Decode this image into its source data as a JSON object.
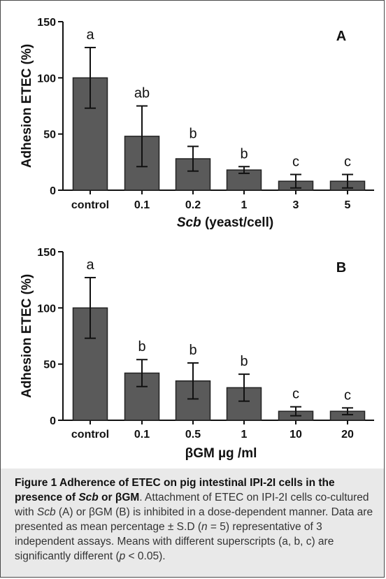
{
  "chart_data": [
    {
      "type": "bar",
      "panel_label": "A",
      "categories": [
        "control",
        "0.1",
        "0.2",
        "1",
        "3",
        "5"
      ],
      "values": [
        100,
        48,
        28,
        18,
        8,
        8
      ],
      "errors": [
        27,
        27,
        11,
        3,
        6,
        6
      ],
      "significance": [
        "a",
        "ab",
        "b",
        "b",
        "c",
        "c"
      ],
      "xlabel_italic": "Scb",
      "xlabel_rest": " (yeast/cell)",
      "ylabel": "Adhesion ETEC (%)",
      "ylim": [
        0,
        150
      ],
      "yticks": [
        0,
        50,
        100,
        150
      ],
      "bar_color": "#5a5a5a",
      "grid": false
    },
    {
      "type": "bar",
      "panel_label": "B",
      "categories": [
        "control",
        "0.1",
        "0.5",
        "1",
        "10",
        "20"
      ],
      "values": [
        100,
        42,
        35,
        29,
        8,
        8
      ],
      "errors": [
        27,
        12,
        16,
        12,
        4,
        3
      ],
      "significance": [
        "a",
        "b",
        "b",
        "b",
        "c",
        "c"
      ],
      "xlabel_italic": "",
      "xlabel_rest": "βGM µg /ml",
      "ylabel": "Adhesion ETEC (%)",
      "ylim": [
        0,
        150
      ],
      "yticks": [
        0,
        50,
        100,
        150
      ],
      "bar_color": "#5a5a5a",
      "grid": false
    }
  ],
  "caption": {
    "title_part1": "Figure 1 Adherence of ETEC on pig intestinal IPI-2I cells in the presence of ",
    "title_scb": "Scb",
    "title_part2": " or βGM",
    "body_1": ". Attachment of ETEC on IPI-2I cells co-cultured with ",
    "body_scb": "Scb",
    "body_2": " (A) or βGM (B) is inhibited in a dose-dependent manner. Data are presented as mean percentage ± S.D (",
    "body_n": "n",
    "body_3": " = 5) representative of 3 independent assays. Means with different superscripts (a, b, c) are significantly different (",
    "body_p": "p",
    "body_4": " < 0.05)."
  }
}
